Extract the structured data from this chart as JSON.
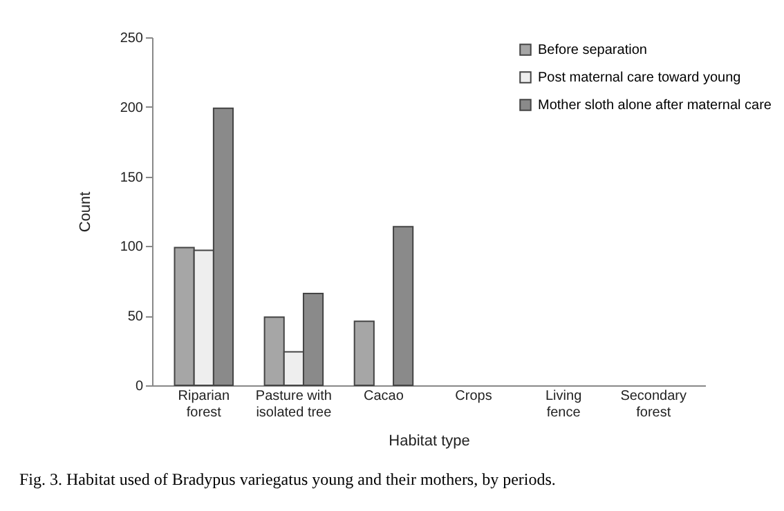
{
  "chart_data": {
    "type": "bar",
    "xlabel": "Habitat type",
    "ylabel": "Count",
    "categories": [
      "Riparian\nforest",
      "Pasture with\nisolated tree",
      "Cacao",
      "Crops",
      "Living\nfence",
      "Secondary\nforest"
    ],
    "series": [
      {
        "name": "Before separation",
        "color": "#a6a6a6",
        "values": [
          99,
          49,
          46,
          0,
          0,
          0
        ]
      },
      {
        "name": "Post maternal care toward young",
        "color": "#eeeeee",
        "values": [
          97,
          24,
          0,
          0,
          0,
          0
        ]
      },
      {
        "name": "Mother sloth alone after maternal care",
        "color": "#8a8a8a",
        "values": [
          199,
          66,
          114,
          0,
          0,
          0
        ]
      }
    ],
    "ylim": [
      0,
      250
    ],
    "yticks": [
      0,
      50,
      100,
      150,
      200,
      250
    ],
    "grid": false,
    "legend": "top right",
    "annotations": [
      "Fig. 3. Habitat used of Bradypus variegatus young and their mothers, by periods."
    ]
  }
}
